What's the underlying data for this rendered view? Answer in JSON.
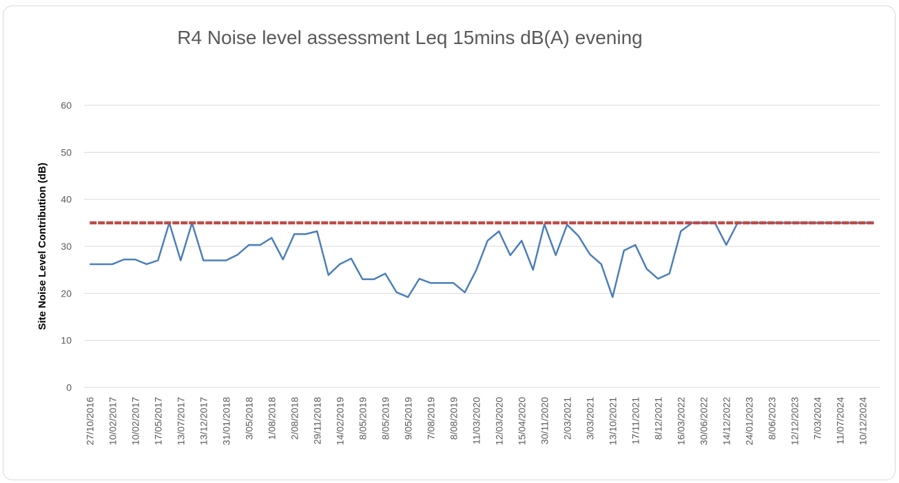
{
  "chart_data": {
    "type": "line",
    "title": "R4 Noise level assessment Leq 15mins dB(A) evening",
    "y_label": "Site Noise Level Contribution (dB)",
    "categories": [
      "27/10/2016",
      null,
      "10/02/2017",
      null,
      "10/02/2017",
      null,
      "17/05/2017",
      null,
      "13/07/2017",
      null,
      "13/12/2017",
      null,
      "31/01/2018",
      null,
      "3/05/2018",
      null,
      "1/08/2018",
      null,
      "2/08/2018",
      null,
      "29/11/2018",
      null,
      "14/02/2019",
      null,
      "8/05/2019",
      null,
      "8/05/2019",
      null,
      "9/05/2019",
      null,
      "7/08/2019",
      null,
      "8/08/2019",
      null,
      "11/03/2020",
      null,
      "12/03/2020",
      null,
      "15/04/2020",
      null,
      "30/11/2020",
      null,
      "2/03/2021",
      null,
      "3/03/2021",
      null,
      "13/10/2021",
      null,
      "17/11/2021",
      null,
      "8/12/2021",
      null,
      "16/03/2022",
      null,
      "30/06/2022",
      null,
      "14/12/2022",
      null,
      "24/01/2023",
      null,
      "8/06/2023",
      null,
      "12/12/2023",
      null,
      "7/03/2024",
      null,
      "11/07/2024",
      null,
      "10/12/2024",
      null
    ],
    "series": [
      {
        "color": "#4a7ebb",
        "values": [
          26.2,
          26.2,
          26.2,
          27.2,
          27.2,
          26.2,
          27,
          35,
          27,
          35,
          27,
          27,
          27,
          28.2,
          30.3,
          30.3,
          31.8,
          27.2,
          32.6,
          32.6,
          33.2,
          23.9,
          26.2,
          27.4,
          23,
          23,
          24.2,
          20.2,
          19.2,
          23.1,
          22.2,
          22.2,
          22.2,
          20.2,
          24.9,
          31.2,
          33.2,
          28.1,
          31.2,
          25,
          34.7,
          28.1,
          34.6,
          32.2,
          28.3,
          26.2,
          19.2,
          29.1,
          30.3,
          25.2,
          23.1,
          24.2,
          33.2,
          35,
          35,
          35,
          30.3,
          35,
          35,
          35,
          35,
          35,
          35,
          35,
          35,
          35,
          35,
          35,
          35,
          35
        ]
      },
      {
        "color": "#be4b48",
        "values": [
          35,
          35,
          35,
          35,
          35,
          35,
          35,
          35,
          35,
          35,
          35,
          35,
          35,
          35,
          35,
          35,
          35,
          35,
          35,
          35,
          35,
          35,
          35,
          35,
          35,
          35,
          35,
          35,
          35,
          35,
          35,
          35,
          35,
          35,
          35,
          35,
          35,
          35,
          35,
          35,
          35,
          35,
          35,
          35,
          35,
          35,
          35,
          35,
          35,
          35,
          35,
          35,
          35,
          35,
          35,
          35,
          35,
          35,
          35,
          35,
          35,
          35,
          35,
          35,
          35,
          35,
          35,
          35,
          35,
          35
        ]
      }
    ],
    "ylim": [
      0,
      60
    ],
    "yticks": [
      0,
      10,
      20,
      30,
      40,
      50,
      60
    ],
    "grid": true
  }
}
